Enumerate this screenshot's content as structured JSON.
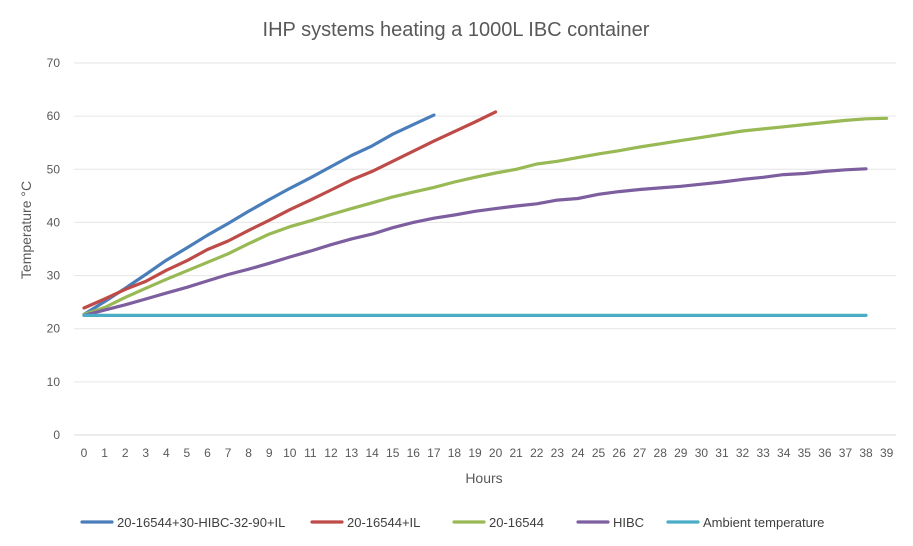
{
  "chart_data": {
    "type": "line",
    "title": "IHP systems heating a 1000L IBC container",
    "xlabel": "Hours",
    "ylabel": "Temperature °C",
    "ylim": [
      0,
      70
    ],
    "yticks": [
      0,
      10,
      20,
      30,
      40,
      50,
      60,
      70
    ],
    "x": [
      0,
      1,
      2,
      3,
      4,
      5,
      6,
      7,
      8,
      9,
      10,
      11,
      12,
      13,
      14,
      15,
      16,
      17,
      18,
      19,
      20,
      21,
      22,
      23,
      24,
      25,
      26,
      27,
      28,
      29,
      30,
      31,
      32,
      33,
      34,
      35,
      36,
      37,
      38,
      39
    ],
    "grid": "horizontal",
    "legend_position": "bottom",
    "series": [
      {
        "name": "20-16544+30-HIBC-32-90+IL",
        "color": "#4a7ebb",
        "x": [
          0,
          1,
          2,
          3,
          4,
          5,
          6,
          7,
          8,
          9,
          10,
          11,
          12,
          13,
          14,
          15,
          16,
          17
        ],
        "values": [
          22.7,
          25.1,
          27.6,
          30.2,
          32.9,
          35.2,
          37.6,
          39.8,
          42.1,
          44.3,
          46.4,
          48.4,
          50.5,
          52.6,
          54.4,
          56.6,
          58.4,
          60.2
        ]
      },
      {
        "name": "20-16544+IL",
        "color": "#be4b48",
        "x": [
          0,
          1,
          2,
          3,
          4,
          5,
          6,
          7,
          8,
          9,
          10,
          11,
          12,
          13,
          14,
          15,
          16,
          17,
          18,
          19,
          20
        ],
        "values": [
          23.9,
          25.6,
          27.4,
          28.9,
          31.0,
          32.8,
          34.9,
          36.5,
          38.5,
          40.4,
          42.4,
          44.2,
          46.1,
          48.0,
          49.6,
          51.5,
          53.4,
          55.3,
          57.1,
          58.9,
          60.8
        ]
      },
      {
        "name": "20-16544",
        "color": "#98b954",
        "x": [
          0,
          1,
          2,
          3,
          4,
          5,
          6,
          7,
          8,
          9,
          10,
          11,
          12,
          13,
          14,
          15,
          16,
          17,
          18,
          19,
          20,
          21,
          22,
          23,
          24,
          25,
          26,
          27,
          28,
          29,
          30,
          31,
          32,
          33,
          34,
          35,
          36,
          37,
          38,
          39
        ],
        "values": [
          22.7,
          24.0,
          25.9,
          27.6,
          29.3,
          30.9,
          32.5,
          34.1,
          36.0,
          37.8,
          39.2,
          40.3,
          41.5,
          42.6,
          43.7,
          44.8,
          45.7,
          46.6,
          47.6,
          48.5,
          49.3,
          50.0,
          51.0,
          51.5,
          52.2,
          52.9,
          53.5,
          54.2,
          54.8,
          55.4,
          56.0,
          56.6,
          57.2,
          57.6,
          58.0,
          58.4,
          58.8,
          59.2,
          59.5,
          59.6
        ]
      },
      {
        "name": "HIBC",
        "color": "#7d5fa0",
        "x": [
          0,
          1,
          2,
          3,
          4,
          5,
          6,
          7,
          8,
          9,
          10,
          11,
          12,
          13,
          14,
          15,
          16,
          17,
          18,
          19,
          20,
          21,
          22,
          23,
          24,
          25,
          26,
          27,
          28,
          29,
          30,
          31,
          32,
          33,
          34,
          35,
          36,
          37,
          38
        ],
        "values": [
          22.5,
          23.5,
          24.5,
          25.6,
          26.7,
          27.8,
          29.0,
          30.2,
          31.2,
          32.3,
          33.5,
          34.6,
          35.8,
          36.9,
          37.8,
          39.0,
          40.0,
          40.8,
          41.4,
          42.1,
          42.6,
          43.1,
          43.5,
          44.2,
          44.5,
          45.3,
          45.8,
          46.2,
          46.5,
          46.8,
          47.2,
          47.6,
          48.1,
          48.5,
          49.0,
          49.2,
          49.6,
          49.9,
          50.1
        ]
      },
      {
        "name": "Ambient temperature",
        "color": "#4bacc6",
        "x": [
          0,
          1,
          2,
          3,
          4,
          5,
          6,
          7,
          8,
          9,
          10,
          11,
          12,
          13,
          14,
          15,
          16,
          17,
          18,
          19,
          20,
          21,
          22,
          23,
          24,
          25,
          26,
          27,
          28,
          29,
          30,
          31,
          32,
          33,
          34,
          35,
          36,
          37,
          38
        ],
        "values": [
          22.5,
          22.5,
          22.5,
          22.5,
          22.5,
          22.5,
          22.5,
          22.5,
          22.5,
          22.5,
          22.5,
          22.5,
          22.5,
          22.5,
          22.5,
          22.5,
          22.5,
          22.5,
          22.5,
          22.5,
          22.5,
          22.5,
          22.5,
          22.5,
          22.5,
          22.5,
          22.5,
          22.5,
          22.5,
          22.5,
          22.5,
          22.5,
          22.5,
          22.5,
          22.5,
          22.5,
          22.5,
          22.5,
          22.5
        ]
      }
    ]
  }
}
